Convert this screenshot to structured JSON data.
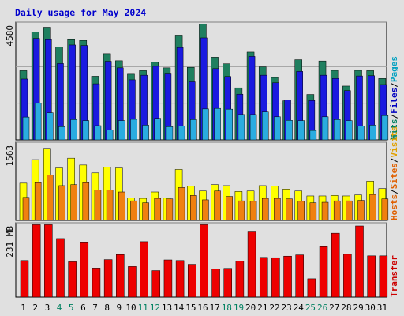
{
  "title": "Daily usage for May 2024",
  "colors": {
    "background": "#e0e0e0",
    "panel": "#e0e0e0",
    "hits": "#1f7f5f",
    "files": "#1a1ae0",
    "pages": "#2aace0",
    "visits": "#ffff00",
    "sites": "#f08010",
    "kbytes": "#ee0000",
    "weekday_label": "#000000",
    "weekend_label": "#008060",
    "legend_pages": "#00a0c0",
    "legend_files": "#0000c0",
    "legend_hits": "#008060",
    "legend_visits": "#e0a000",
    "legend_sites": "#e06000",
    "legend_transfer": "#cc0000"
  },
  "legends": {
    "top": [
      {
        "text": "Pages",
        "color": "#00a0c0"
      },
      {
        "text": "Files",
        "color": "#0000c0"
      },
      {
        "text": "Hits",
        "color": "#008060"
      }
    ],
    "mid": [
      {
        "text": "Visits",
        "color": "#e0a000"
      },
      {
        "text": "Sites",
        "color": "#e06000"
      },
      {
        "text": "Hosts",
        "color": "#e06000"
      }
    ],
    "bot": [
      {
        "text": "Transfer",
        "color": "#cc0000"
      }
    ]
  },
  "chart_data": [
    {
      "type": "bar",
      "title": "Daily usage for May 2024",
      "ymax_label": "4580",
      "ylim": [
        0,
        4580
      ],
      "categories": [
        "1",
        "2",
        "3",
        "4",
        "5",
        "6",
        "7",
        "8",
        "9",
        "10",
        "11",
        "12",
        "13",
        "14",
        "15",
        "16",
        "17",
        "18",
        "19",
        "20",
        "21",
        "22",
        "23",
        "24",
        "25",
        "26",
        "27",
        "28",
        "29",
        "30",
        "31"
      ],
      "weekend": [
        false,
        false,
        false,
        true,
        true,
        false,
        false,
        false,
        false,
        false,
        true,
        true,
        false,
        false,
        false,
        false,
        false,
        true,
        true,
        false,
        false,
        false,
        false,
        false,
        true,
        true,
        false,
        false,
        false,
        false,
        false
      ],
      "series": [
        {
          "name": "Hits",
          "values": [
            2730,
            4250,
            4440,
            3660,
            3980,
            3920,
            2510,
            3400,
            3120,
            2590,
            2730,
            3060,
            2840,
            4130,
            2860,
            4560,
            3260,
            3000,
            2050,
            3460,
            2880,
            2460,
            1540,
            3160,
            1790,
            3110,
            2740,
            2120,
            2740,
            2730,
            2420
          ]
        },
        {
          "name": "Files",
          "values": [
            2400,
            4000,
            3980,
            3010,
            3740,
            3720,
            2210,
            3100,
            2840,
            2370,
            2550,
            2900,
            2600,
            3640,
            2290,
            4020,
            2810,
            2500,
            1800,
            3290,
            2550,
            2250,
            1580,
            2700,
            1550,
            2550,
            2420,
            1940,
            2520,
            2530,
            2180
          ]
        },
        {
          "name": "Pages",
          "values": [
            900,
            1440,
            1070,
            520,
            800,
            760,
            560,
            390,
            760,
            810,
            580,
            850,
            520,
            540,
            800,
            1220,
            1240,
            1210,
            1000,
            1000,
            1100,
            910,
            770,
            760,
            370,
            910,
            800,
            760,
            550,
            580,
            960
          ]
        }
      ]
    },
    {
      "type": "bar",
      "ymax_label": "1563",
      "ylim": [
        0,
        1563
      ],
      "categories": [
        "1",
        "2",
        "3",
        "4",
        "5",
        "6",
        "7",
        "8",
        "9",
        "10",
        "11",
        "12",
        "13",
        "14",
        "15",
        "16",
        "17",
        "18",
        "19",
        "20",
        "21",
        "22",
        "23",
        "24",
        "25",
        "26",
        "27",
        "28",
        "29",
        "30",
        "31"
      ],
      "series": [
        {
          "name": "Visits",
          "values": [
            760,
            1240,
            1470,
            1070,
            1270,
            1130,
            970,
            1090,
            1070,
            460,
            450,
            580,
            460,
            1040,
            700,
            600,
            730,
            710,
            590,
            600,
            710,
            700,
            640,
            600,
            500,
            500,
            510,
            500,
            520,
            800,
            650
          ]
        },
        {
          "name": "Sites",
          "values": [
            470,
            770,
            930,
            710,
            730,
            770,
            620,
            620,
            580,
            400,
            360,
            450,
            440,
            670,
            510,
            420,
            600,
            490,
            400,
            390,
            450,
            450,
            440,
            390,
            360,
            370,
            400,
            400,
            410,
            530,
            440
          ]
        }
      ]
    },
    {
      "type": "bar",
      "ymax_label": "231 MB",
      "ylim": [
        0,
        231
      ],
      "categories": [
        "1",
        "2",
        "3",
        "4",
        "5",
        "6",
        "7",
        "8",
        "9",
        "10",
        "11",
        "12",
        "13",
        "14",
        "15",
        "16",
        "17",
        "18",
        "19",
        "20",
        "21",
        "22",
        "23",
        "24",
        "25",
        "26",
        "27",
        "28",
        "29",
        "30",
        "31"
      ],
      "series": [
        {
          "name": "Transfer",
          "values": [
            116,
            230,
            230,
            186,
            112,
            175,
            92,
            119,
            135,
            97,
            176,
            84,
            118,
            116,
            104,
            230,
            89,
            91,
            114,
            207,
            126,
            125,
            130,
            134,
            58,
            160,
            203,
            136,
            226,
            131,
            131
          ]
        }
      ]
    }
  ]
}
